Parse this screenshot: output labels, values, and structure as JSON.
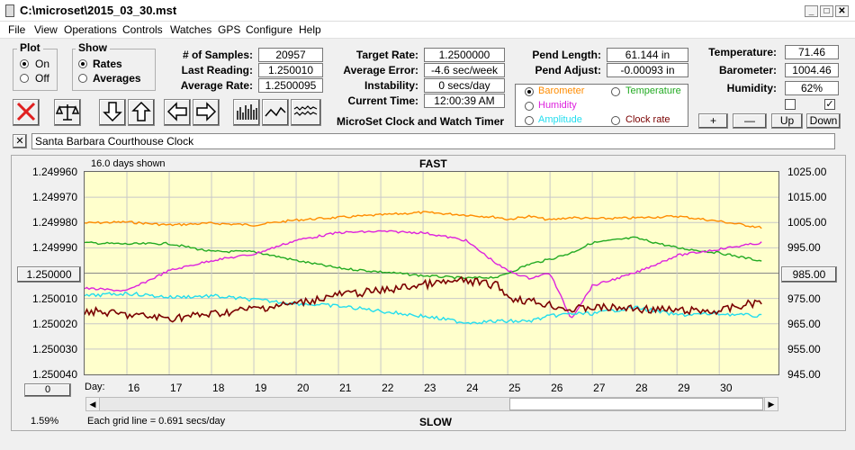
{
  "window": {
    "title": "C:\\microset\\2015_03_30.mst"
  },
  "menu": [
    "File",
    "View",
    "Operations",
    "Controls",
    "Watches",
    "GPS",
    "Configure",
    "Help"
  ],
  "plot_group": {
    "title": "Plot",
    "on": "On",
    "off": "Off"
  },
  "show_group": {
    "title": "Show",
    "rates": "Rates",
    "averages": "Averages"
  },
  "stats": {
    "samples_label": "# of Samples:",
    "samples": "20957",
    "last_label": "Last Reading:",
    "last": "1.250010",
    "avg_label": "Average Rate:",
    "avg": "1.2500095",
    "target_label": "Target Rate:",
    "target": "1.2500000",
    "avgerr_label": "Average Error:",
    "avgerr": "-4.6 sec/week",
    "instab_label": "Instability:",
    "instab": "0 secs/day",
    "time_label": "Current Time:",
    "time": "12:00:39 AM",
    "pend_label": "Pend Length:",
    "pend": "61.144 in",
    "adjust_label": "Pend Adjust:",
    "adjust": "-0.00093 in",
    "temp_label": "Temperature:",
    "temp": "71.46",
    "baro_label": "Barometer:",
    "baro": "1004.46",
    "hum_label": "Humidity:",
    "hum": "62%"
  },
  "aux": {
    "barometer": "Barometer",
    "temperature": "Temperature",
    "humidity": "Humidity",
    "amplitude": "Amplitude",
    "clockrate": "Clock rate"
  },
  "app_title": "MicroSet Clock and Watch Timer",
  "buttons": {
    "plus": "+",
    "minus": "—",
    "up": "Up",
    "down": "Down"
  },
  "clock_name": "Santa Barbara Courthouse Clock",
  "close_x": "✕",
  "chart": {
    "days_shown": "16.0 days shown",
    "fast": "FAST",
    "slow": "SLOW",
    "grid_note": "Each grid line = 0.691 secs/day",
    "pct": "1.59%",
    "day_label": "Day:",
    "left_btn": "1.250000",
    "right_btn": "985.00",
    "zero_btn": "0"
  },
  "colors": {
    "barometer": "#ff8c00",
    "temperature": "#22aa22",
    "humidity": "#dd22dd",
    "amplitude": "#22ddee",
    "rate": "#7a0000"
  },
  "chart_data": {
    "type": "line",
    "yleft_ticks": [
      "1.249960",
      "1.249970",
      "1.249980",
      "1.249990",
      "1.250000",
      "1.250010",
      "1.250020",
      "1.250030",
      "1.250040"
    ],
    "yright_ticks": [
      "1025.00",
      "1015.00",
      "1005.00",
      "995.00",
      "985.00",
      "975.00",
      "965.00",
      "955.00",
      "945.00"
    ],
    "x_ticks": [
      "16",
      "17",
      "18",
      "19",
      "20",
      "21",
      "22",
      "23",
      "24",
      "25",
      "26",
      "27",
      "28",
      "29",
      "30"
    ],
    "x": [
      15,
      16,
      17,
      18,
      19,
      20,
      21,
      22,
      23,
      24,
      24.8,
      25,
      25.5,
      26,
      26.5,
      27,
      28,
      29,
      30,
      31
    ],
    "series": [
      {
        "name": "Barometer",
        "values": [
          1004.8,
          1005.2,
          1004.0,
          1004.7,
          1004.0,
          1006.0,
          1007.0,
          1008.0,
          1009.0,
          1008.0,
          1007.0,
          1006.2,
          1007.5,
          1006.0,
          1007.0,
          1006.5,
          1006.8,
          1007.5,
          1005.5,
          1003.0
        ]
      },
      {
        "name": "Temperature",
        "values": [
          997,
          996.5,
          996.7,
          993.5,
          993.5,
          990,
          987,
          985.5,
          984,
          983,
          983.5,
          985,
          988.5,
          990.5,
          993,
          997,
          999,
          995,
          993,
          989.8
        ]
      },
      {
        "name": "Humidity",
        "values": [
          979,
          978,
          986,
          990,
          992.5,
          998,
          1001,
          1001.5,
          1001,
          998,
          988,
          986,
          983,
          985,
          967,
          980,
          985,
          992,
          994.5,
          997
        ]
      },
      {
        "name": "Amplitude",
        "values": [
          976,
          977,
          975.5,
          976,
          974.5,
          973,
          972,
          970,
          968,
          965.5,
          966,
          966,
          966,
          968,
          969,
          969,
          971.5,
          968.5,
          969,
          968
        ]
      },
      {
        "name": "Clock rate",
        "values": [
          1.2500148,
          1.2500165,
          1.2500178,
          1.2500162,
          1.250014,
          1.250012,
          1.2500085,
          1.250007,
          1.2500045,
          1.250003,
          1.250005,
          1.2500095,
          1.250011,
          1.2500125,
          1.2500145,
          1.2500135,
          1.250014,
          1.2500148,
          1.250015,
          1.250011
        ]
      }
    ]
  }
}
